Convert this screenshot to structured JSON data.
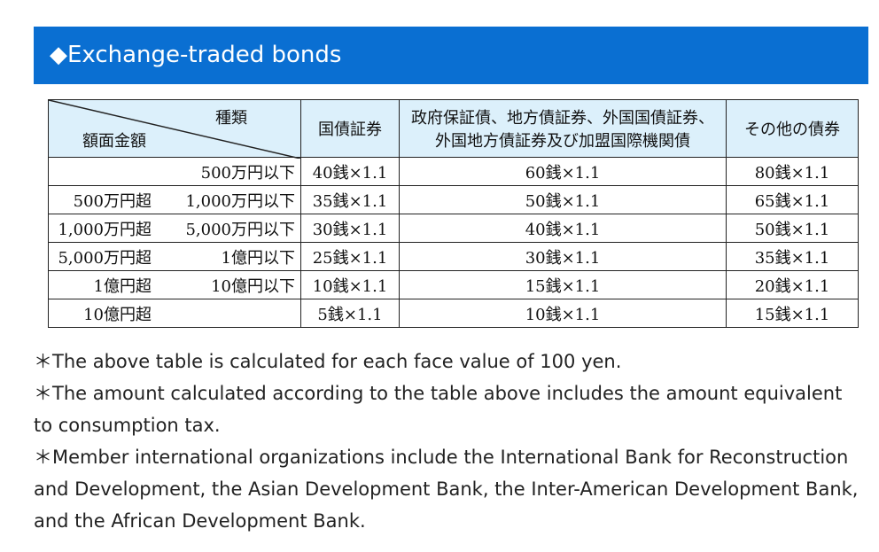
{
  "header": {
    "title": "◆Exchange-traded bonds",
    "color": "#0a6fd2"
  },
  "table": {
    "corner": {
      "top": "種類",
      "bottom": "額面金額"
    },
    "columns": [
      "国債証券",
      "政府保証債、地方債証券、外国国債証券、\n外国地方債証券及び加盟国際機関債",
      "その他の債券"
    ],
    "columns_line1": "政府保証債、地方債証券、外国国債証券、",
    "columns_line2": "外国地方債証券及び加盟国際機関債",
    "rows": [
      {
        "from": "",
        "to": "500万円以下",
        "v": [
          "40銭×1.1",
          "60銭×1.1",
          "80銭×1.1"
        ]
      },
      {
        "from": "500万円超",
        "to": "1,000万円以下",
        "v": [
          "35銭×1.1",
          "50銭×1.1",
          "65銭×1.1"
        ]
      },
      {
        "from": "1,000万円超",
        "to": "5,000万円以下",
        "v": [
          "30銭×1.1",
          "40銭×1.1",
          "50銭×1.1"
        ]
      },
      {
        "from": "5,000万円超",
        "to": "1億円以下",
        "v": [
          "25銭×1.1",
          "30銭×1.1",
          "35銭×1.1"
        ]
      },
      {
        "from": "1億円超",
        "to": "10億円以下",
        "v": [
          "10銭×1.1",
          "15銭×1.1",
          "20銭×1.1"
        ]
      },
      {
        "from": "10億円超",
        "to": "",
        "v": [
          "5銭×1.1",
          "10銭×1.1",
          "15銭×1.1"
        ]
      }
    ]
  },
  "notes": [
    "＊The above table is calculated for each face value of 100 yen.",
    "＊The amount calculated according to the table above includes the amount equivalent to consumption tax.",
    "＊Member international organizations include the International Bank for Reconstruction and Development, the Asian Development Bank, the Inter-American Development Bank, and the African Development Bank."
  ]
}
